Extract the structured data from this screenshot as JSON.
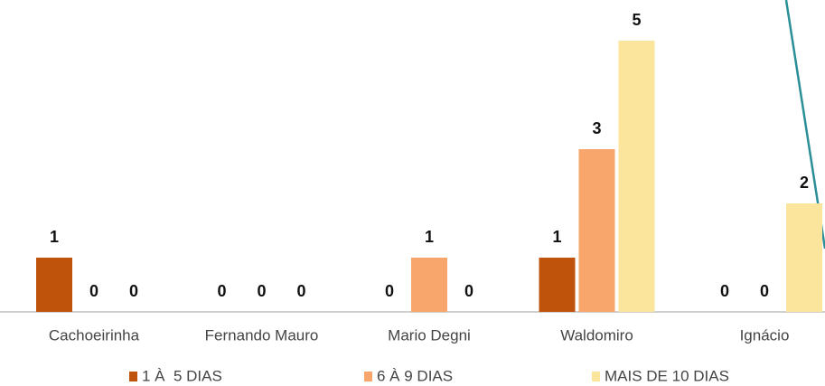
{
  "chart_data": {
    "type": "bar",
    "categories": [
      "Cachoeirinha",
      "Fernando Mauro",
      "Mario Degni",
      "Waldomiro",
      "Ignácio"
    ],
    "series": [
      {
        "name": "1 À  5 DIAS",
        "color": "#c0530c",
        "values": [
          1,
          0,
          0,
          1,
          0
        ]
      },
      {
        "name": "6 À 9 DIAS",
        "color": "#f9a66c",
        "values": [
          0,
          0,
          1,
          3,
          0
        ]
      },
      {
        "name": "MAIS DE 10 DIAS",
        "color": "#fbe49c",
        "values": [
          0,
          0,
          0,
          5,
          2
        ]
      }
    ]
  }
}
